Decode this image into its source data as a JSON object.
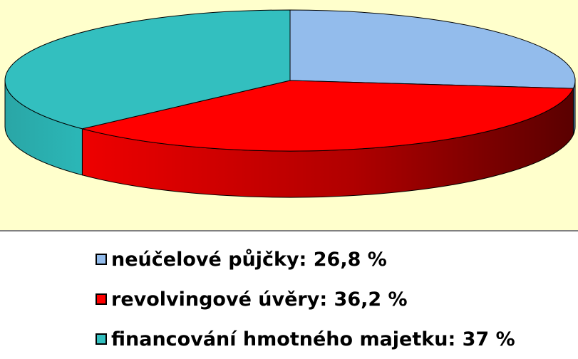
{
  "chart_data": {
    "type": "pie",
    "variant": "3d-exploded-none",
    "categories": [
      "neúčelové půjčky",
      "revolvingové úvěry",
      "financování hmotného majetku"
    ],
    "values": [
      26.8,
      36.2,
      37
    ],
    "unit": "%",
    "colors": [
      "#93bcec",
      "#ff0000",
      "#33bfbf"
    ],
    "side_colors": [
      "#6f8fb4",
      "#c00000",
      "#1f9a9a"
    ],
    "legend_position": "bottom",
    "title": "",
    "legend": [
      {
        "label": "neúčelové půjčky: 26,8 %",
        "color": "#93bcec"
      },
      {
        "label": "revolvingové úvěry: 36,2 %",
        "color": "#ff0000"
      },
      {
        "label": "financování hmotného majetku: 37 %",
        "color": "#33bfbf"
      }
    ]
  },
  "colors": {
    "plot_background": "#ffffcc",
    "page_background": "#ffffff"
  }
}
